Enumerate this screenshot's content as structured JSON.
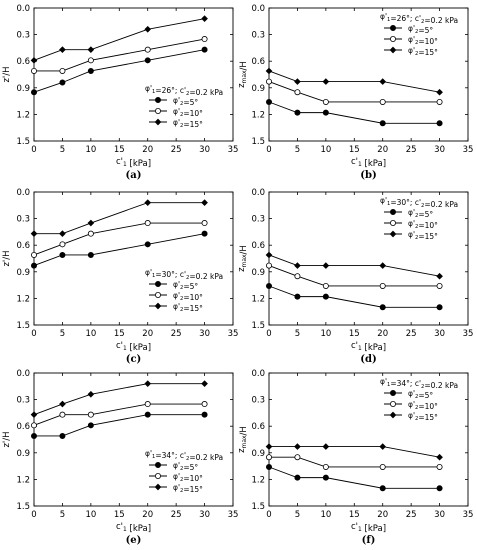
{
  "chart_data": [
    {
      "type": "line",
      "caption": "(a)",
      "xlabel": "c'1 [kPa]",
      "ylabel": "z'/H",
      "xlim": [
        0,
        35
      ],
      "xticks": [
        0,
        5,
        10,
        15,
        20,
        25,
        30,
        35
      ],
      "ylim": [
        0,
        1.5
      ],
      "yticks": [
        0.0,
        0.3,
        0.6,
        0.9,
        1.2,
        1.5
      ],
      "y_inverted": true,
      "legend_title": "φ'1=26°; c'2=0.2 kPa",
      "legend_position": "bottom-right",
      "x": [
        0,
        5,
        10,
        20,
        30
      ],
      "series": [
        {
          "name": "φ'2=5°",
          "marker": "filled-circle",
          "values": [
            0.95,
            0.84,
            0.71,
            0.59,
            0.47
          ]
        },
        {
          "name": "φ'2=10°",
          "marker": "open-circle",
          "values": [
            0.71,
            0.71,
            0.59,
            0.47,
            0.35
          ]
        },
        {
          "name": "φ'2=15°",
          "marker": "diamond",
          "values": [
            0.59,
            0.47,
            0.47,
            0.24,
            0.12
          ]
        }
      ]
    },
    {
      "type": "line",
      "caption": "(b)",
      "xlabel": "c'1 [kPa]",
      "ylabel": "zmax/H",
      "xlim": [
        0,
        35
      ],
      "xticks": [
        0,
        5,
        10,
        15,
        20,
        25,
        30,
        35
      ],
      "ylim": [
        0,
        1.5
      ],
      "yticks": [
        0.0,
        0.3,
        0.6,
        0.9,
        1.2,
        1.5
      ],
      "y_inverted": true,
      "legend_title": "φ'1=26°; c'2=0.2 kPa",
      "legend_position": "top-right",
      "x": [
        0,
        5,
        10,
        20,
        30
      ],
      "series": [
        {
          "name": "φ'2=5°",
          "marker": "filled-circle",
          "values": [
            1.06,
            1.18,
            1.18,
            1.3,
            1.3
          ]
        },
        {
          "name": "φ'2=10°",
          "marker": "open-circle",
          "values": [
            0.83,
            0.95,
            1.06,
            1.06,
            1.06
          ]
        },
        {
          "name": "φ'2=15°",
          "marker": "diamond",
          "values": [
            0.71,
            0.83,
            0.83,
            0.83,
            0.95
          ]
        }
      ]
    },
    {
      "type": "line",
      "caption": "(c)",
      "xlabel": "c'1 [kPa]",
      "ylabel": "z'/H",
      "xlim": [
        0,
        35
      ],
      "xticks": [
        0,
        5,
        10,
        15,
        20,
        25,
        30,
        35
      ],
      "ylim": [
        0,
        1.5
      ],
      "yticks": [
        0.0,
        0.3,
        0.6,
        0.9,
        1.2,
        1.5
      ],
      "y_inverted": true,
      "legend_title": "φ'1=30°; c'2=0.2 kPa",
      "legend_position": "bottom-right",
      "x": [
        0,
        5,
        10,
        20,
        30
      ],
      "series": [
        {
          "name": "φ'2=5°",
          "marker": "filled-circle",
          "values": [
            0.83,
            0.71,
            0.71,
            0.59,
            0.47
          ]
        },
        {
          "name": "φ'2=10°",
          "marker": "open-circle",
          "values": [
            0.71,
            0.59,
            0.47,
            0.35,
            0.35
          ]
        },
        {
          "name": "φ'2=15°",
          "marker": "diamond",
          "values": [
            0.47,
            0.47,
            0.35,
            0.12,
            0.12
          ]
        }
      ]
    },
    {
      "type": "line",
      "caption": "(d)",
      "xlabel": "c'1 [kPa]",
      "ylabel": "zmax/H",
      "xlim": [
        0,
        35
      ],
      "xticks": [
        0,
        5,
        10,
        15,
        20,
        25,
        30,
        35
      ],
      "ylim": [
        0,
        1.5
      ],
      "yticks": [
        0.0,
        0.3,
        0.6,
        0.9,
        1.2,
        1.5
      ],
      "y_inverted": true,
      "legend_title": "φ'1=30°; c'2=0.2 kPa",
      "legend_position": "top-right",
      "x": [
        0,
        5,
        10,
        20,
        30
      ],
      "series": [
        {
          "name": "φ'2=5°",
          "marker": "filled-circle",
          "values": [
            1.06,
            1.18,
            1.18,
            1.3,
            1.3
          ]
        },
        {
          "name": "φ'2=10°",
          "marker": "open-circle",
          "values": [
            0.83,
            0.95,
            1.06,
            1.06,
            1.06
          ]
        },
        {
          "name": "φ'2=15°",
          "marker": "diamond",
          "values": [
            0.71,
            0.83,
            0.83,
            0.83,
            0.95
          ]
        }
      ]
    },
    {
      "type": "line",
      "caption": "(e)",
      "xlabel": "c'1 [kPa]",
      "ylabel": "z'/H",
      "xlim": [
        0,
        35
      ],
      "xticks": [
        0,
        5,
        10,
        15,
        20,
        25,
        30,
        35
      ],
      "ylim": [
        0,
        1.5
      ],
      "yticks": [
        0.0,
        0.3,
        0.6,
        0.9,
        1.2,
        1.5
      ],
      "y_inverted": true,
      "legend_title": "φ'1=34°; c'2=0.2 kPa",
      "legend_position": "bottom-right",
      "x": [
        0,
        5,
        10,
        20,
        30
      ],
      "series": [
        {
          "name": "φ'2=5°",
          "marker": "filled-circle",
          "values": [
            0.71,
            0.71,
            0.59,
            0.47,
            0.47
          ]
        },
        {
          "name": "φ'2=10°",
          "marker": "open-circle",
          "values": [
            0.59,
            0.47,
            0.47,
            0.35,
            0.35
          ]
        },
        {
          "name": "φ'2=15°",
          "marker": "diamond",
          "values": [
            0.47,
            0.35,
            0.24,
            0.12,
            0.12
          ]
        }
      ]
    },
    {
      "type": "line",
      "caption": "(f)",
      "xlabel": "c'1 [kPa]",
      "ylabel": "zmax/H",
      "xlim": [
        0,
        35
      ],
      "xticks": [
        0,
        5,
        10,
        15,
        20,
        25,
        30,
        35
      ],
      "ylim": [
        0,
        1.5
      ],
      "yticks": [
        0.0,
        0.3,
        0.6,
        0.9,
        1.2,
        1.5
      ],
      "y_inverted": true,
      "legend_title": "φ'1=34°; c'2=0.2 kPa",
      "legend_position": "top-right",
      "x": [
        0,
        5,
        10,
        20,
        30
      ],
      "series": [
        {
          "name": "φ'2=5°",
          "marker": "filled-circle",
          "values": [
            1.06,
            1.18,
            1.18,
            1.3,
            1.3
          ]
        },
        {
          "name": "φ'2=10°",
          "marker": "open-circle",
          "values": [
            0.95,
            0.95,
            1.06,
            1.06,
            1.06
          ]
        },
        {
          "name": "φ'2=15°",
          "marker": "diamond",
          "values": [
            0.83,
            0.83,
            0.83,
            0.83,
            0.95
          ]
        }
      ]
    }
  ]
}
